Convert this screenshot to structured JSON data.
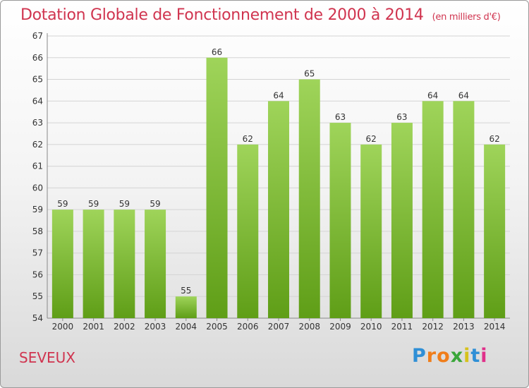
{
  "header": {
    "title": "Dotation Globale de Fonctionnement de 2000 à 2014",
    "subtitle": "(en milliers d'€)"
  },
  "commune": "SEVEUX",
  "logo": {
    "letters": [
      "P",
      "r",
      "o",
      "x",
      "i",
      "t",
      "i"
    ],
    "colors": [
      "#2f8fd6",
      "#f07d1a",
      "#f07d1a",
      "#3aa63a",
      "#d6c21c",
      "#2f8fd6",
      "#e0308a"
    ]
  },
  "chart_data": {
    "type": "bar",
    "categories": [
      "2000",
      "2001",
      "2002",
      "2003",
      "2004",
      "2005",
      "2006",
      "2007",
      "2008",
      "2009",
      "2010",
      "2011",
      "2012",
      "2013",
      "2014"
    ],
    "values": [
      59,
      59,
      59,
      59,
      55,
      66,
      62,
      64,
      65,
      63,
      62,
      63,
      64,
      64,
      62
    ],
    "ylim": [
      54,
      67
    ],
    "yticks": [
      54,
      55,
      56,
      57,
      58,
      59,
      60,
      61,
      62,
      63,
      64,
      65,
      66,
      67
    ],
    "grid": true,
    "bar_color": "#8cc63f"
  }
}
